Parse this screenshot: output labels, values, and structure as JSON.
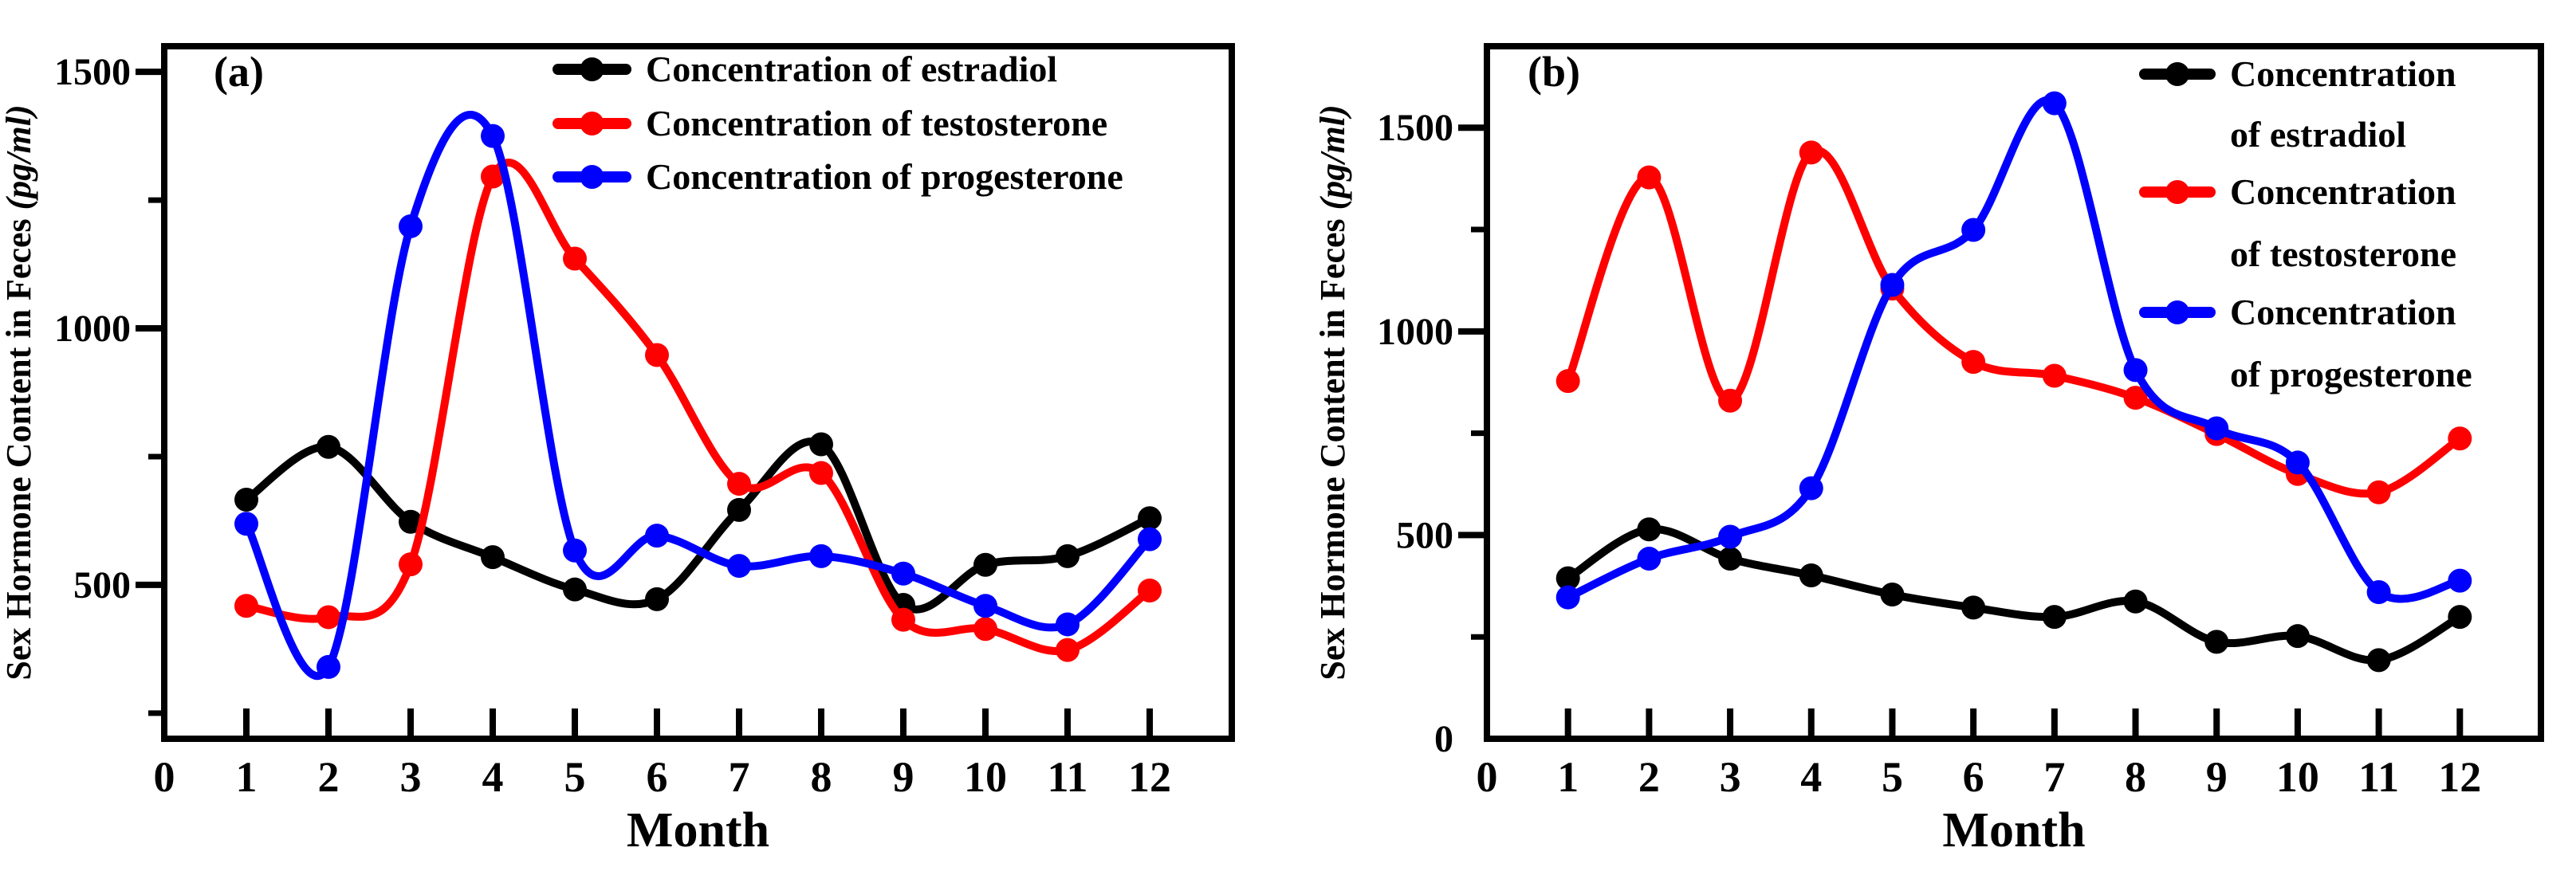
{
  "chart_data": [
    {
      "type": "line",
      "panel_label": "(a)",
      "xlabel": "Month",
      "ylabel": "Sex Hormone Content in Feces ",
      "ylabel_unit": "(pg/ml)",
      "xlim": [
        0,
        13
      ],
      "ylim": [
        200,
        1550
      ],
      "x_ticks": [
        0,
        1,
        2,
        3,
        4,
        5,
        6,
        7,
        8,
        9,
        10,
        11,
        12
      ],
      "x_tick_labels": [
        "0",
        "1",
        "2",
        "3",
        "4",
        "5",
        "6",
        "7",
        "8",
        "9",
        "10",
        "11",
        "12"
      ],
      "y_major_ticks": [
        500,
        1000,
        1500
      ],
      "y_tick_labels": [
        "500",
        "1000",
        "1500"
      ],
      "y_minor_ticks": [
        250,
        750,
        1250
      ],
      "grid": false,
      "legend_position": "top-right",
      "x": [
        1,
        2,
        3,
        4,
        5,
        6,
        7,
        8,
        9,
        10,
        11,
        12
      ],
      "series": [
        {
          "name": "Concentration of estradiol",
          "legend_lines": [
            "Concentration of estradiol"
          ],
          "color": "#000000",
          "values": [
            666,
            769,
            623,
            554,
            491,
            472,
            646,
            774,
            461,
            539,
            556,
            630
          ]
        },
        {
          "name": "Concentration of testosterone",
          "legend_lines": [
            "Concentration of testosterone"
          ],
          "color": "#ff0000",
          "values": [
            459,
            437,
            540,
            1296,
            1136,
            948,
            697,
            718,
            432,
            414,
            373,
            489
          ]
        },
        {
          "name": "Concentration of progesterone",
          "legend_lines": [
            "Concentration of progesterone"
          ],
          "color": "#0000ff",
          "values": [
            619,
            340,
            1199,
            1375,
            567,
            596,
            537,
            556,
            522,
            459,
            423,
            589
          ]
        }
      ]
    },
    {
      "type": "line",
      "panel_label": "(b)",
      "xlabel": "Month",
      "ylabel": "Sex Hormone Content in Feces ",
      "ylabel_unit": "(pg/ml)",
      "xlim": [
        0,
        13
      ],
      "ylim": [
        0,
        1700
      ],
      "x_ticks": [
        0,
        1,
        2,
        3,
        4,
        5,
        6,
        7,
        8,
        9,
        10,
        11,
        12
      ],
      "x_tick_labels": [
        "0",
        "1",
        "2",
        "3",
        "4",
        "5",
        "6",
        "7",
        "8",
        "9",
        "10",
        "11",
        "12"
      ],
      "y_major_ticks": [
        0,
        500,
        1000,
        1500
      ],
      "y_tick_labels": [
        "0",
        "500",
        "1000",
        "1500"
      ],
      "y_minor_ticks": [
        250,
        750,
        1250
      ],
      "grid": false,
      "legend_position": "top-right",
      "x": [
        1,
        2,
        3,
        4,
        5,
        6,
        7,
        8,
        9,
        10,
        11,
        12
      ],
      "series": [
        {
          "name": "Concentration of estradiol",
          "legend_lines": [
            "Concentration",
            "of estradiol"
          ],
          "color": "#000000",
          "values": [
            394,
            514,
            442,
            401,
            354,
            322,
            299,
            337,
            238,
            252,
            193,
            299
          ]
        },
        {
          "name": "Concentration of testosterone",
          "legend_lines": [
            "Concentration",
            "of testosterone"
          ],
          "color": "#ff0000",
          "values": [
            878,
            1378,
            830,
            1439,
            1105,
            925,
            891,
            837,
            748,
            650,
            605,
            737
          ]
        },
        {
          "name": "Concentration of progesterone",
          "legend_lines": [
            "Concentration",
            "of progesterone"
          ],
          "color": "#0000ff",
          "values": [
            347,
            442,
            496,
            615,
            1114,
            1249,
            1560,
            905,
            762,
            678,
            360,
            388
          ]
        }
      ]
    }
  ]
}
